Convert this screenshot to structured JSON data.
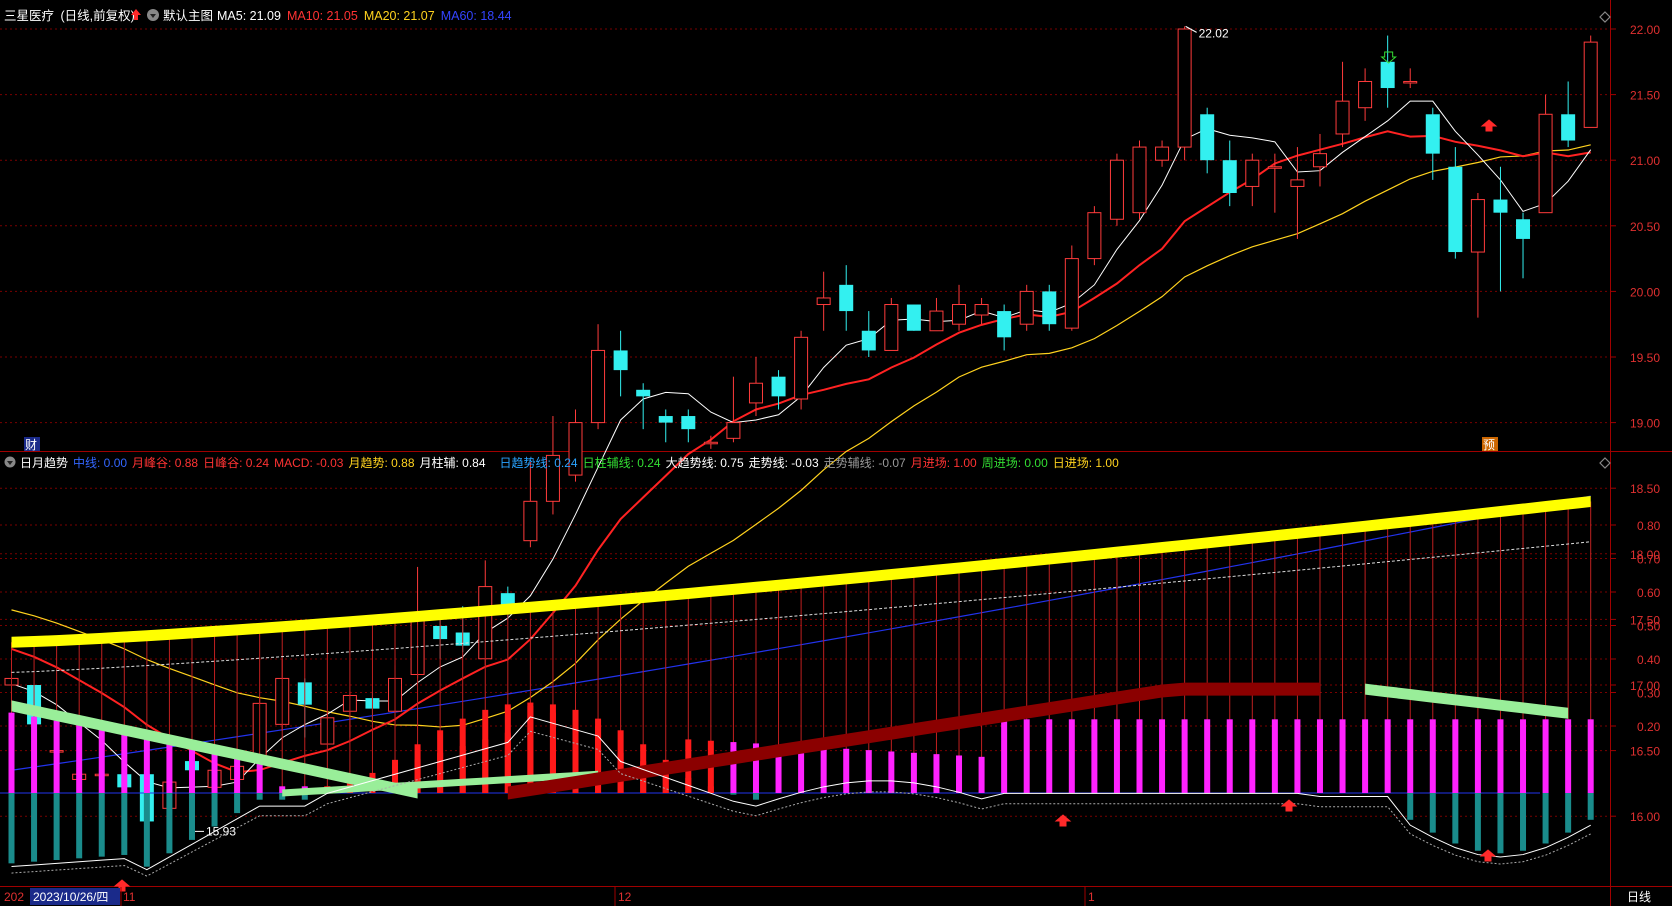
{
  "app": {
    "stock_name": "三星医疗",
    "period_label": "(日线,前复权)",
    "main_chart_label": "默认主图",
    "period_tab": "日线"
  },
  "main_panel": {
    "ma": [
      {
        "label": "MA5:",
        "value": "21.09",
        "color": "#ffffff"
      },
      {
        "label": "MA10:",
        "value": "21.05",
        "color": "#ff3333"
      },
      {
        "label": "MA20:",
        "value": "21.07",
        "color": "#ffd21e"
      },
      {
        "label": "MA60:",
        "value": "18.44",
        "color": "#3344ff"
      }
    ],
    "price_ticks": [
      "22.00",
      "21.50",
      "21.00",
      "20.50",
      "20.00",
      "19.50",
      "19.00",
      "18.50",
      "18.00",
      "17.50",
      "17.00",
      "16.50",
      "16.00"
    ],
    "high_annotation": "22.02",
    "low_annotation": "15.93",
    "badge_left": "财",
    "badge_right": "预"
  },
  "indicator_panel": {
    "name": "日月趋势",
    "values": [
      {
        "label": "中线:",
        "value": "0.00",
        "color": "#3366ff"
      },
      {
        "label": "月峰谷:",
        "value": "0.88",
        "color": "#ff3333"
      },
      {
        "label": "日峰谷:",
        "value": "0.24",
        "color": "#ff3333"
      },
      {
        "label": "MACD:",
        "value": "-0.03",
        "color": "#ff3333"
      },
      {
        "label": "月趋势:",
        "value": "0.88",
        "color": "#ffd21e"
      },
      {
        "label": "月柱辅:",
        "value": "0.84",
        "color": "#ffffff"
      },
      {
        "label": "日趋势线:",
        "value": "0.24",
        "color": "#29a3ff"
      },
      {
        "label": "日柱辅线:",
        "value": "0.24",
        "color": "#33dd33"
      },
      {
        "label": "大趋势线:",
        "value": "0.75",
        "color": "#ffffff"
      },
      {
        "label": "走势线:",
        "value": "-0.03",
        "color": "#ffffff"
      },
      {
        "label": "走势辅线:",
        "value": "-0.07",
        "color": "#999999"
      },
      {
        "label": "月进场:",
        "value": "1.00",
        "color": "#ff3333"
      },
      {
        "label": "周进场:",
        "value": "0.00",
        "color": "#33dd33"
      },
      {
        "label": "日进场:",
        "value": "1.00",
        "color": "#ffd21e"
      }
    ],
    "ticks": [
      "0.80",
      "0.70",
      "0.60",
      "0.50",
      "0.40",
      "0.30",
      "0.20"
    ]
  },
  "time_axis": {
    "cursor_date": "2023/10/26/四",
    "left_label": "202",
    "month_labels": [
      "11",
      "12",
      "1"
    ]
  },
  "colors": {
    "up": "#ff3b3b",
    "down": "#33f0f0",
    "grid": "#7a0000",
    "axis_text": "#e03030",
    "tri_yellow": "#ffff00",
    "tri_green": "#99ee99",
    "tri_darkred": "#8b0000",
    "bar_magenta": "#ff22ff",
    "bar_teal": "#1a8c8c"
  },
  "chart_data": {
    "type": "candlestick",
    "candles": [
      [
        17.0,
        17.05,
        16.92,
        17.18
      ],
      [
        17.0,
        16.7,
        16.35,
        16.95
      ],
      [
        16.5,
        16.5,
        16.3,
        16.58
      ],
      [
        16.28,
        16.32,
        16.25,
        16.4
      ],
      [
        16.32,
        16.32,
        16.26,
        16.4
      ],
      [
        16.32,
        16.22,
        16.18,
        16.4
      ],
      [
        16.32,
        15.96,
        15.93,
        16.4
      ],
      [
        16.06,
        16.26,
        16.0,
        16.3
      ],
      [
        16.42,
        16.35,
        16.3,
        16.5
      ],
      [
        16.22,
        16.35,
        16.15,
        16.38
      ],
      [
        16.28,
        16.38,
        16.25,
        16.45
      ],
      [
        16.42,
        16.86,
        16.38,
        16.9
      ],
      [
        16.7,
        17.05,
        16.65,
        17.2
      ],
      [
        17.02,
        16.85,
        16.6,
        17.05
      ],
      [
        16.55,
        16.75,
        16.55,
        16.8
      ],
      [
        16.8,
        16.92,
        16.6,
        16.95
      ],
      [
        16.9,
        16.82,
        16.7,
        16.95
      ],
      [
        16.8,
        17.05,
        16.7,
        17.15
      ],
      [
        17.08,
        17.55,
        17.05,
        17.9
      ],
      [
        17.45,
        17.35,
        17.2,
        17.55
      ],
      [
        17.4,
        17.3,
        17.25,
        17.6
      ],
      [
        17.2,
        17.75,
        17.15,
        17.95
      ],
      [
        17.7,
        17.6,
        17.5,
        17.75
      ],
      [
        18.1,
        18.4,
        18.05,
        18.7
      ],
      [
        18.4,
        18.75,
        18.3,
        19.05
      ],
      [
        18.6,
        19.0,
        18.55,
        19.1
      ],
      [
        19.0,
        19.55,
        18.95,
        19.75
      ],
      [
        19.55,
        19.4,
        19.2,
        19.7
      ],
      [
        19.25,
        19.2,
        18.95,
        19.3
      ],
      [
        19.05,
        19.0,
        18.85,
        19.1
      ],
      [
        19.05,
        18.95,
        18.85,
        19.1
      ],
      [
        18.85,
        18.85,
        18.8,
        18.9
      ],
      [
        18.88,
        19.0,
        18.85,
        19.35
      ],
      [
        19.15,
        19.3,
        19.05,
        19.5
      ],
      [
        19.35,
        19.2,
        19.1,
        19.4
      ],
      [
        19.18,
        19.65,
        19.1,
        19.7
      ],
      [
        19.9,
        19.95,
        19.7,
        20.15
      ],
      [
        20.05,
        19.85,
        19.7,
        20.2
      ],
      [
        19.7,
        19.55,
        19.5,
        19.85
      ],
      [
        19.55,
        19.9,
        19.55,
        19.95
      ],
      [
        19.9,
        19.7,
        19.7,
        19.9
      ],
      [
        19.7,
        19.85,
        19.7,
        19.95
      ],
      [
        19.75,
        19.9,
        19.7,
        20.05
      ],
      [
        19.82,
        19.9,
        19.75,
        19.95
      ],
      [
        19.85,
        19.65,
        19.55,
        19.9
      ],
      [
        19.75,
        20.0,
        19.7,
        20.05
      ],
      [
        20.0,
        19.75,
        19.7,
        20.05
      ],
      [
        19.72,
        20.25,
        19.7,
        20.35
      ],
      [
        20.25,
        20.6,
        20.2,
        20.65
      ],
      [
        20.55,
        21.0,
        20.5,
        21.05
      ],
      [
        20.6,
        21.1,
        20.55,
        21.15
      ],
      [
        21.0,
        21.1,
        20.95,
        21.15
      ],
      [
        21.1,
        22.0,
        21.0,
        22.02
      ],
      [
        21.35,
        21.0,
        20.9,
        21.4
      ],
      [
        21.0,
        20.75,
        20.65,
        21.15
      ],
      [
        20.8,
        21.0,
        20.65,
        21.05
      ],
      [
        20.95,
        20.95,
        20.6,
        21.05
      ],
      [
        20.8,
        20.85,
        20.4,
        21.1
      ],
      [
        20.95,
        21.05,
        20.8,
        21.2
      ],
      [
        21.2,
        21.45,
        21.1,
        21.75
      ],
      [
        21.4,
        21.6,
        21.3,
        21.7
      ],
      [
        21.75,
        21.55,
        21.4,
        21.95
      ],
      [
        21.6,
        21.6,
        21.55,
        21.7
      ],
      [
        21.35,
        21.05,
        20.85,
        21.4
      ],
      [
        20.95,
        20.3,
        20.25,
        21.1
      ],
      [
        20.3,
        20.7,
        19.8,
        20.75
      ],
      [
        20.7,
        20.6,
        20.0,
        20.95
      ],
      [
        20.55,
        20.4,
        20.1,
        20.6
      ],
      [
        20.6,
        21.35,
        20.6,
        21.5
      ],
      [
        21.35,
        21.15,
        21.1,
        21.6
      ],
      [
        21.25,
        21.9,
        21.25,
        21.95
      ]
    ]
  }
}
